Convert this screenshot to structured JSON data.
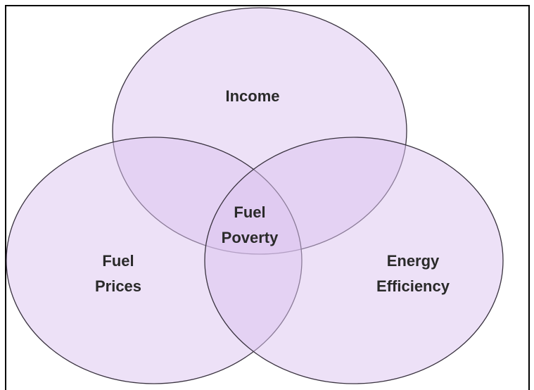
{
  "sets": [
    {
      "lines": [
        "Income"
      ]
    },
    {
      "lines": [
        "Fuel",
        "Prices"
      ]
    },
    {
      "lines": [
        "Energy",
        "Efficiency"
      ]
    }
  ],
  "center": {
    "lines": [
      "Fuel",
      "Poverty"
    ]
  }
}
